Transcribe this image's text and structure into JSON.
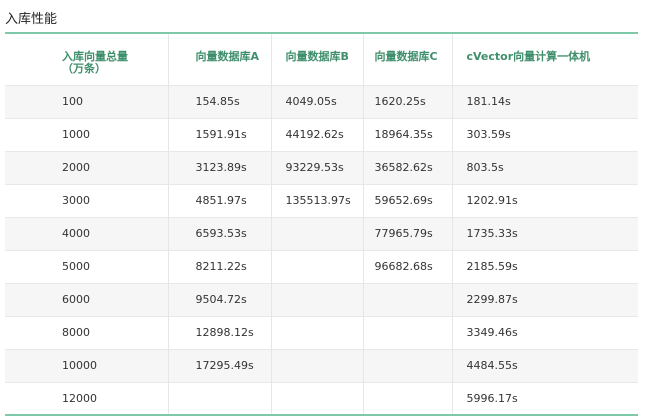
{
  "title": "入库性能",
  "table": {
    "headers": [
      "入库向量总量\n（万条）",
      "向量数据库A",
      "向量数据库B",
      "向量数据库C",
      "cVector向量计算一体机"
    ],
    "rows": [
      [
        "100",
        "154.85s",
        "4049.05s",
        "1620.25s",
        "181.14s"
      ],
      [
        "1000",
        "1591.91s",
        "44192.62s",
        "18964.35s",
        "303.59s"
      ],
      [
        "2000",
        "3123.89s",
        "93229.53s",
        "36582.62s",
        "803.5s"
      ],
      [
        "3000",
        "4851.97s",
        "135513.97s",
        "59652.69s",
        "1202.91s"
      ],
      [
        "4000",
        "6593.53s",
        "",
        "77965.79s",
        "1735.33s"
      ],
      [
        "5000",
        "8211.22s",
        "",
        "96682.68s",
        "2185.59s"
      ],
      [
        "6000",
        "9504.72s",
        "",
        "",
        "2299.87s"
      ],
      [
        "8000",
        "12898.12s",
        "",
        "",
        "3349.46s"
      ],
      [
        "10000",
        "17295.49s",
        "",
        "",
        "4484.55s"
      ],
      [
        "12000",
        "",
        "",
        "",
        "5996.17s"
      ]
    ]
  },
  "colors": {
    "accent_border": "#7ec9a7",
    "header_text": "#3f8f6c",
    "row_stripe": "#f6f6f6"
  }
}
